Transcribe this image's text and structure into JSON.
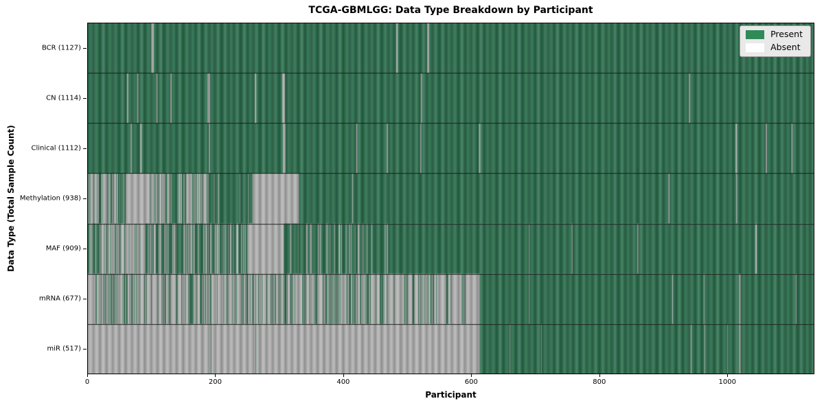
{
  "colors": {
    "present_bar": "#2f7050",
    "absent_bar": "#b4b4b4",
    "legend_present_swatch": "#2e8b57",
    "legend_absent_swatch": "#ffffff",
    "legend_bg": "#e9e9e9",
    "legend_border": "#9b9b9b",
    "plot_border": "#000000",
    "row_divider": "#1c1c1c"
  },
  "chart_data": {
    "type": "heatmap",
    "title": "TCGA-GBMLGG: Data Type Breakdown by Participant",
    "xlabel": "Participant",
    "ylabel": "Data Type (Total Sample Count)",
    "xlim": [
      0,
      1136
    ],
    "n_participants": 1136,
    "x_ticks": [
      0,
      200,
      400,
      600,
      800,
      1000
    ],
    "grid": false,
    "legend_position": "upper right",
    "legend_items": [
      {
        "label": "Present",
        "color": "#2e8b57"
      },
      {
        "label": "Absent",
        "color": "#ffffff"
      }
    ],
    "rows": [
      {
        "label": "BCR (1127)",
        "data_type": "BCR",
        "present_count": 1127,
        "segments": [
          {
            "from": 0,
            "to": 100,
            "absent": 0
          },
          {
            "from": 100,
            "to": 104,
            "absent": 1
          },
          {
            "from": 104,
            "to": 483,
            "absent": 0
          },
          {
            "from": 483,
            "to": 485,
            "absent": 1
          },
          {
            "from": 485,
            "to": 531,
            "absent": 0
          },
          {
            "from": 531,
            "to": 534,
            "absent": 1
          },
          {
            "from": 534,
            "to": 1136,
            "absent": 0
          }
        ]
      },
      {
        "label": "CN (1114)",
        "data_type": "CN",
        "present_count": 1114,
        "segments": [
          {
            "from": 0,
            "to": 62,
            "absent": 0
          },
          {
            "from": 62,
            "to": 64,
            "absent": 1
          },
          {
            "from": 64,
            "to": 78,
            "absent": 0
          },
          {
            "from": 78,
            "to": 80,
            "absent": 1
          },
          {
            "from": 80,
            "to": 108,
            "absent": 0
          },
          {
            "from": 108,
            "to": 110,
            "absent": 1
          },
          {
            "from": 110,
            "to": 130,
            "absent": 0
          },
          {
            "from": 130,
            "to": 132,
            "absent": 1
          },
          {
            "from": 132,
            "to": 188,
            "absent": 0
          },
          {
            "from": 188,
            "to": 192,
            "absent": 1
          },
          {
            "from": 192,
            "to": 262,
            "absent": 0
          },
          {
            "from": 262,
            "to": 264,
            "absent": 1
          },
          {
            "from": 264,
            "to": 305,
            "absent": 0
          },
          {
            "from": 305,
            "to": 309,
            "absent": 1
          },
          {
            "from": 309,
            "to": 521,
            "absent": 0
          },
          {
            "from": 521,
            "to": 523,
            "absent": 1
          },
          {
            "from": 523,
            "to": 940,
            "absent": 0
          },
          {
            "from": 940,
            "to": 942,
            "absent": 1
          },
          {
            "from": 942,
            "to": 1136,
            "absent": 0
          }
        ]
      },
      {
        "label": "Clinical (1112)",
        "data_type": "Clinical",
        "present_count": 1112,
        "segments": [
          {
            "from": 0,
            "to": 68,
            "absent": 0
          },
          {
            "from": 68,
            "to": 70,
            "absent": 1
          },
          {
            "from": 70,
            "to": 83,
            "absent": 0
          },
          {
            "from": 83,
            "to": 85,
            "absent": 1
          },
          {
            "from": 85,
            "to": 190,
            "absent": 0
          },
          {
            "from": 190,
            "to": 192,
            "absent": 1
          },
          {
            "from": 192,
            "to": 306,
            "absent": 0
          },
          {
            "from": 306,
            "to": 310,
            "absent": 1
          },
          {
            "from": 310,
            "to": 420,
            "absent": 0
          },
          {
            "from": 420,
            "to": 422,
            "absent": 1
          },
          {
            "from": 422,
            "to": 468,
            "absent": 0
          },
          {
            "from": 468,
            "to": 470,
            "absent": 1
          },
          {
            "from": 470,
            "to": 520,
            "absent": 0
          },
          {
            "from": 520,
            "to": 522,
            "absent": 1
          },
          {
            "from": 522,
            "to": 612,
            "absent": 0
          },
          {
            "from": 612,
            "to": 614,
            "absent": 1
          },
          {
            "from": 614,
            "to": 1013,
            "absent": 0
          },
          {
            "from": 1013,
            "to": 1015,
            "absent": 1
          },
          {
            "from": 1015,
            "to": 1060,
            "absent": 0
          },
          {
            "from": 1060,
            "to": 1062,
            "absent": 1
          },
          {
            "from": 1062,
            "to": 1100,
            "absent": 0
          },
          {
            "from": 1100,
            "to": 1102,
            "absent": 1
          },
          {
            "from": 1102,
            "to": 1136,
            "absent": 0
          }
        ]
      },
      {
        "label": "Methylation (938)",
        "data_type": "Methylation",
        "present_count": 938,
        "segments": [
          {
            "from": 0,
            "to": 60,
            "absent": 0.55
          },
          {
            "from": 60,
            "to": 94,
            "absent": 1
          },
          {
            "from": 94,
            "to": 190,
            "absent": 0.55
          },
          {
            "from": 190,
            "to": 259,
            "absent": 0.03
          },
          {
            "from": 259,
            "to": 331,
            "absent": 1
          },
          {
            "from": 331,
            "to": 414,
            "absent": 0
          },
          {
            "from": 414,
            "to": 415,
            "absent": 1
          },
          {
            "from": 415,
            "to": 908,
            "absent": 0
          },
          {
            "from": 908,
            "to": 910,
            "absent": 1
          },
          {
            "from": 910,
            "to": 1014,
            "absent": 0
          },
          {
            "from": 1014,
            "to": 1015,
            "absent": 1
          },
          {
            "from": 1015,
            "to": 1136,
            "absent": 0
          }
        ]
      },
      {
        "label": "MAF (909)",
        "data_type": "MAF",
        "present_count": 909,
        "segments": [
          {
            "from": 0,
            "to": 20,
            "absent": 0.5
          },
          {
            "from": 20,
            "to": 90,
            "absent": 0.85
          },
          {
            "from": 90,
            "to": 250,
            "absent": 0.34
          },
          {
            "from": 250,
            "to": 307,
            "absent": 1
          },
          {
            "from": 307,
            "to": 470,
            "absent": 0.25
          },
          {
            "from": 470,
            "to": 690,
            "absent": 0
          },
          {
            "from": 690,
            "to": 691,
            "absent": 1
          },
          {
            "from": 691,
            "to": 757,
            "absent": 0
          },
          {
            "from": 757,
            "to": 758,
            "absent": 1
          },
          {
            "from": 758,
            "to": 859,
            "absent": 0
          },
          {
            "from": 859,
            "to": 861,
            "absent": 1
          },
          {
            "from": 861,
            "to": 1044,
            "absent": 0
          },
          {
            "from": 1044,
            "to": 1046,
            "absent": 1
          },
          {
            "from": 1046,
            "to": 1136,
            "absent": 0
          }
        ]
      },
      {
        "label": "mRNA (677)",
        "data_type": "mRNA",
        "present_count": 677,
        "segments": [
          {
            "from": 0,
            "to": 594,
            "absent": 0.73
          },
          {
            "from": 594,
            "to": 613,
            "absent": 1
          },
          {
            "from": 613,
            "to": 690,
            "absent": 0
          },
          {
            "from": 690,
            "to": 691,
            "absent": 1
          },
          {
            "from": 691,
            "to": 914,
            "absent": 0
          },
          {
            "from": 914,
            "to": 915,
            "absent": 1
          },
          {
            "from": 915,
            "to": 963,
            "absent": 0
          },
          {
            "from": 963,
            "to": 964,
            "absent": 1
          },
          {
            "from": 964,
            "to": 1018,
            "absent": 0
          },
          {
            "from": 1018,
            "to": 1021,
            "absent": 1
          },
          {
            "from": 1021,
            "to": 1107,
            "absent": 0
          },
          {
            "from": 1107,
            "to": 1108,
            "absent": 1
          },
          {
            "from": 1108,
            "to": 1136,
            "absent": 0
          }
        ]
      },
      {
        "label": "miR (517)",
        "data_type": "miR",
        "present_count": 517,
        "segments": [
          {
            "from": 0,
            "to": 193,
            "absent": 1
          },
          {
            "from": 193,
            "to": 194,
            "absent": 0
          },
          {
            "from": 194,
            "to": 263,
            "absent": 1
          },
          {
            "from": 263,
            "to": 264,
            "absent": 0
          },
          {
            "from": 264,
            "to": 613,
            "absent": 1
          },
          {
            "from": 613,
            "to": 660,
            "absent": 0
          },
          {
            "from": 660,
            "to": 661,
            "absent": 1
          },
          {
            "from": 661,
            "to": 709,
            "absent": 0
          },
          {
            "from": 709,
            "to": 710,
            "absent": 1
          },
          {
            "from": 710,
            "to": 943,
            "absent": 0
          },
          {
            "from": 943,
            "to": 944,
            "absent": 1
          },
          {
            "from": 944,
            "to": 964,
            "absent": 0
          },
          {
            "from": 964,
            "to": 965,
            "absent": 1
          },
          {
            "from": 965,
            "to": 1000,
            "absent": 0
          },
          {
            "from": 1000,
            "to": 1001,
            "absent": 1
          },
          {
            "from": 1001,
            "to": 1018,
            "absent": 0
          },
          {
            "from": 1018,
            "to": 1021,
            "absent": 1
          },
          {
            "from": 1021,
            "to": 1136,
            "absent": 0
          }
        ]
      }
    ]
  }
}
